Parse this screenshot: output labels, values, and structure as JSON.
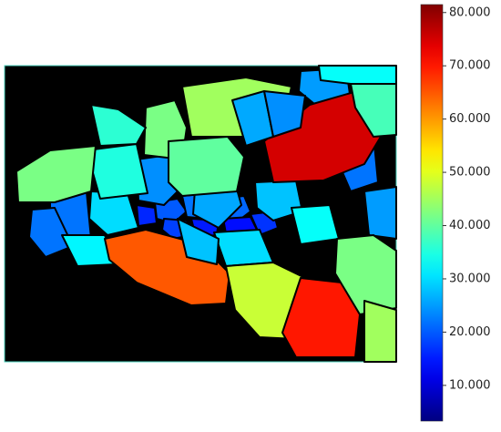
{
  "chart_data": {
    "type": "segmentation",
    "values": [
      20,
      22,
      21,
      18,
      15,
      14,
      16,
      17,
      22,
      24,
      26,
      25,
      22,
      25,
      28,
      22,
      33,
      30,
      32,
      30,
      35,
      42,
      42,
      45,
      40,
      75,
      65,
      48,
      70,
      42,
      45,
      33,
      38,
      26,
      24,
      28,
      36
    ],
    "clim": [
      3.3,
      81.5
    ],
    "cticks": [
      {
        "value": 10,
        "label": "10.000"
      },
      {
        "value": 20,
        "label": "20.000"
      },
      {
        "value": 30,
        "label": "30.000"
      },
      {
        "value": 40,
        "label": "40.000"
      },
      {
        "value": 50,
        "label": "50.000"
      },
      {
        "value": 60,
        "label": "60.000"
      },
      {
        "value": 70,
        "label": "70.000"
      },
      {
        "value": 80,
        "label": "80.000"
      }
    ],
    "colormap": "jet"
  }
}
